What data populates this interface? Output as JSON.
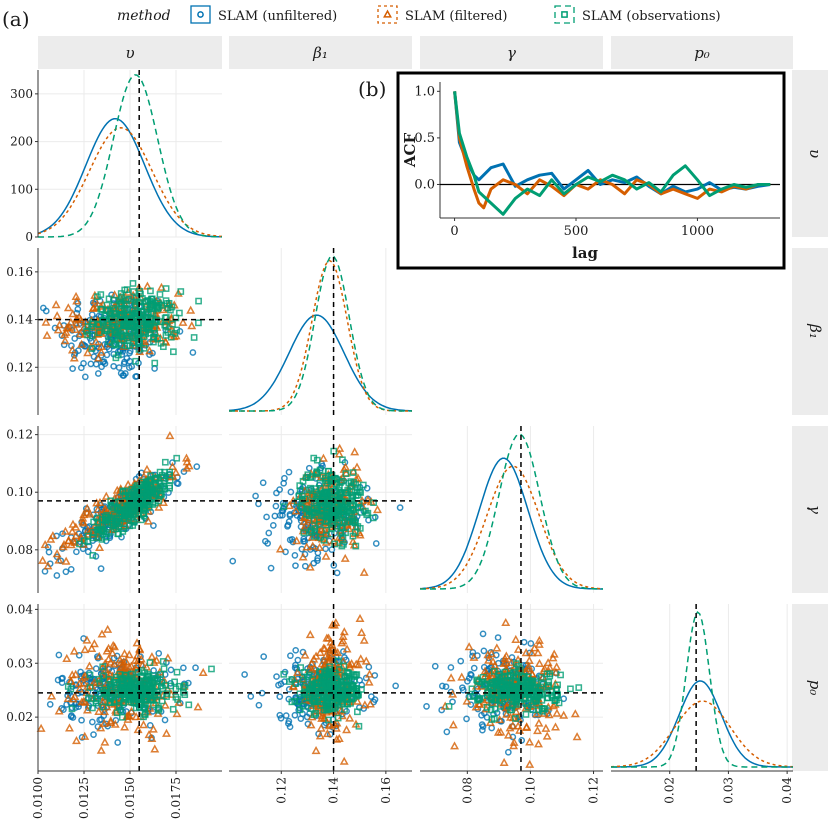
{
  "panel_labels": {
    "a": "(a)",
    "b": "(b)"
  },
  "legend": {
    "title": "method",
    "items": [
      {
        "label": "SLAM (unfiltered)",
        "color": "#0072B2",
        "shape": "circle",
        "line": "solid"
      },
      {
        "label": "SLAM (filtered)",
        "color": "#D55E00",
        "shape": "triangle",
        "line": "dotted"
      },
      {
        "label": "SLAM (observations)",
        "color": "#009E73",
        "shape": "square",
        "line": "dashed"
      }
    ]
  },
  "strips": {
    "top": [
      "υ",
      "β₁",
      "γ",
      "p₀"
    ],
    "right": [
      "υ",
      "β₁",
      "γ",
      "p₀"
    ]
  },
  "chart_data": [
    {
      "type": "scatter",
      "panel": "pairs-matrix",
      "variables": [
        "υ",
        "β₁",
        "γ",
        "p₀"
      ],
      "true_values": {
        "υ": 0.0155,
        "β₁": 0.14,
        "γ": 0.097,
        "p₀": 0.0245
      },
      "axes": {
        "υ": {
          "range": [
            0.01,
            0.02
          ],
          "ticks": [
            "0.0100",
            "0.0125",
            "0.0150",
            "0.0175"
          ]
        },
        "β₁": {
          "range": [
            0.1,
            0.17
          ],
          "ticks": [
            "0.12",
            "0.14",
            "0.16"
          ]
        },
        "γ": {
          "range": [
            0.065,
            0.123
          ],
          "ticks": [
            "0.08",
            "0.10",
            "0.12"
          ]
        },
        "p₀": {
          "range": [
            0.01,
            0.041
          ],
          "ticks": [
            "0.02",
            "0.03",
            "0.04"
          ]
        }
      },
      "density_axis": {
        "range": [
          0,
          350
        ],
        "ticks": [
          "0",
          "100",
          "200",
          "300"
        ]
      },
      "series": [
        {
          "name": "SLAM (unfiltered)",
          "mean": {
            "υ": 0.0142,
            "β₁": 0.1335,
            "γ": 0.0915,
            "p₀": 0.0252
          },
          "sd": {
            "υ": 0.0016,
            "β₁": 0.0105,
            "γ": 0.0077,
            "p₀": 0.0036
          }
        },
        {
          "name": "SLAM (filtered)",
          "mean": {
            "υ": 0.0145,
            "β₁": 0.1385,
            "γ": 0.0945,
            "p₀": 0.0256
          },
          "sd": {
            "υ": 0.0017,
            "β₁": 0.0067,
            "γ": 0.0082,
            "p₀": 0.0047
          }
        },
        {
          "name": "SLAM (observations)",
          "mean": {
            "υ": 0.0153,
            "β₁": 0.1395,
            "γ": 0.0965,
            "p₀": 0.0248
          },
          "sd": {
            "υ": 0.0012,
            "β₁": 0.0065,
            "γ": 0.0065,
            "p₀": 0.002
          }
        }
      ],
      "density_peaks": {
        "υ": [
          248,
          229,
          340
        ]
      }
    },
    {
      "type": "line",
      "panel": "inset-acf",
      "xlabel": "lag",
      "ylabel": "ACF",
      "xlim": [
        -60,
        1340
      ],
      "ylim": [
        -0.36,
        1.1
      ],
      "xticks": [
        "0",
        "500",
        "1000"
      ],
      "yticks": [
        "0.0",
        "0.5",
        "1.0"
      ],
      "series": [
        {
          "name": "SLAM (unfiltered)",
          "x": [
            0,
            20,
            50,
            80,
            100,
            150,
            200,
            250,
            300,
            350,
            400,
            450,
            500,
            550,
            600,
            650,
            700,
            750,
            800,
            850,
            900,
            950,
            1000,
            1050,
            1100,
            1150,
            1200,
            1250,
            1300
          ],
          "y": [
            1.0,
            0.45,
            0.25,
            0.1,
            0.05,
            0.18,
            0.22,
            -0.02,
            0.05,
            0.1,
            0.12,
            -0.05,
            0.05,
            0.15,
            0.0,
            0.05,
            0.02,
            0.08,
            -0.02,
            -0.1,
            -0.02,
            -0.08,
            -0.05,
            0.02,
            -0.06,
            -0.03,
            -0.05,
            -0.02,
            0.0
          ]
        },
        {
          "name": "SLAM (filtered)",
          "x": [
            0,
            20,
            50,
            80,
            100,
            120,
            150,
            200,
            250,
            300,
            350,
            400,
            450,
            500,
            550,
            600,
            650,
            700,
            750,
            800,
            850,
            900,
            950,
            1000,
            1050,
            1100,
            1150,
            1200,
            1250,
            1300
          ],
          "y": [
            1.0,
            0.5,
            0.2,
            -0.05,
            -0.2,
            -0.25,
            -0.05,
            0.05,
            0.0,
            -0.1,
            0.05,
            -0.02,
            -0.12,
            0.0,
            -0.05,
            0.05,
            0.0,
            -0.1,
            0.05,
            0.0,
            -0.1,
            -0.05,
            -0.1,
            -0.15,
            -0.05,
            -0.08,
            -0.02,
            -0.05,
            0.0,
            0.0
          ]
        },
        {
          "name": "SLAM (observations)",
          "x": [
            0,
            20,
            50,
            80,
            100,
            150,
            200,
            250,
            300,
            350,
            400,
            450,
            500,
            550,
            600,
            650,
            700,
            750,
            800,
            850,
            900,
            950,
            1000,
            1050,
            1100,
            1150,
            1200,
            1250,
            1300
          ],
          "y": [
            1.0,
            0.55,
            0.3,
            0.1,
            -0.08,
            -0.2,
            -0.32,
            -0.15,
            -0.05,
            -0.12,
            0.05,
            -0.1,
            0.0,
            0.08,
            0.03,
            0.1,
            0.05,
            -0.05,
            0.02,
            -0.08,
            0.1,
            0.2,
            0.05,
            -0.12,
            -0.05,
            0.0,
            -0.03,
            0.0,
            0.0
          ]
        }
      ]
    }
  ]
}
